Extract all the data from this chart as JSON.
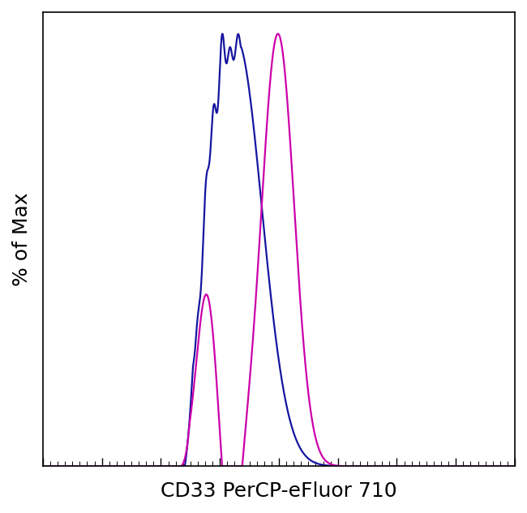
{
  "title": "",
  "xlabel": "CD33 PerCP-eFluor 710",
  "ylabel": "% of Max",
  "xlabel_fontsize": 18,
  "ylabel_fontsize": 18,
  "blue_color": "#1515a0",
  "magenta_color": "#cc00aa",
  "line_width": 1.6,
  "xlim": [
    0,
    1024
  ],
  "ylim": [
    0,
    1.05
  ],
  "background_color": "#ffffff"
}
